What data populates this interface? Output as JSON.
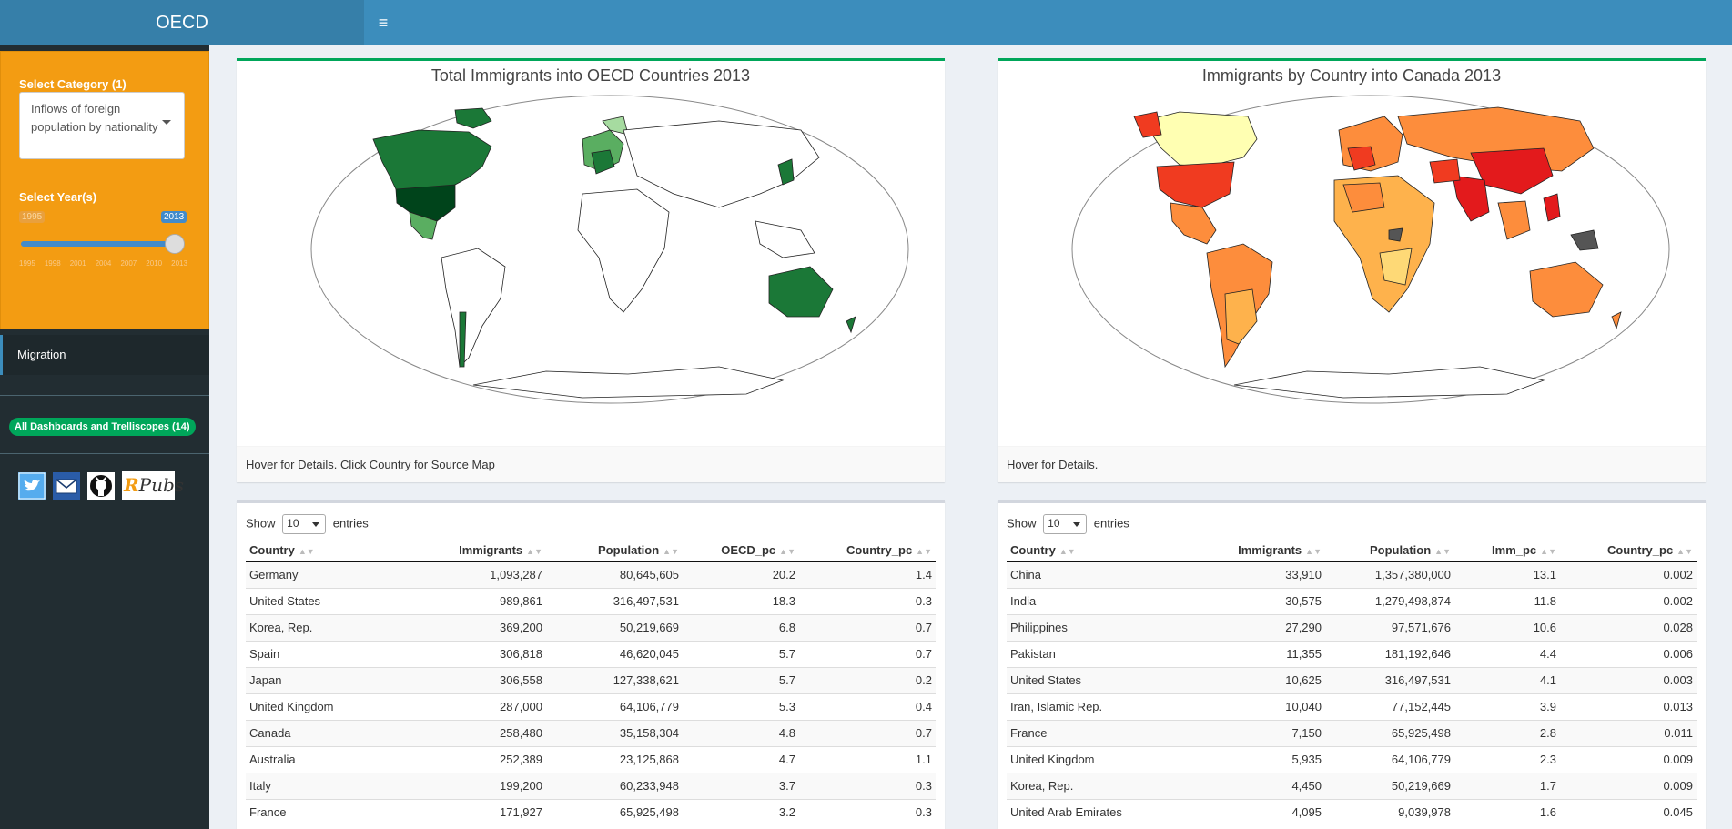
{
  "header": {
    "logo": "OECD",
    "menu_icon": "hamburger-icon"
  },
  "sidebar": {
    "category_label": "Select Category (1)",
    "category_value": "Inflows of foreign population by nationality",
    "year_label": "Select Year(s)",
    "slider_min_label": "1995",
    "slider_max_label": "2013",
    "slider_ticks": [
      "1995",
      "1998",
      "2001",
      "2004",
      "2007",
      "2010",
      "2013"
    ],
    "menu_item": "Migration",
    "badge_link": "All Dashboards and Trelliscopes (14)",
    "social": {
      "twitter_icon": "twitter-icon",
      "email_icon": "email-icon",
      "github_icon": "github-icon",
      "rpubs_r": "R",
      "rpubs_text": "Pubs"
    }
  },
  "map_left": {
    "title": "Total Immigrants into OECD Countries 2013",
    "footer": "Hover for Details. Click Country for Source Map",
    "accent": "#00a65a"
  },
  "map_right": {
    "title": "Immigrants by Country into Canada 2013",
    "footer": "Hover for Details.",
    "accent": "#00a65a"
  },
  "table_left": {
    "show_label": "Show",
    "entries_label": "entries",
    "length_value": "10",
    "columns": [
      "Country",
      "Immigrants",
      "Population",
      "OECD_pc",
      "Country_pc"
    ],
    "rows": [
      [
        "Germany",
        "1,093,287",
        "80,645,605",
        "20.2",
        "1.4"
      ],
      [
        "United States",
        "989,861",
        "316,497,531",
        "18.3",
        "0.3"
      ],
      [
        "Korea, Rep.",
        "369,200",
        "50,219,669",
        "6.8",
        "0.7"
      ],
      [
        "Spain",
        "306,818",
        "46,620,045",
        "5.7",
        "0.7"
      ],
      [
        "Japan",
        "306,558",
        "127,338,621",
        "5.7",
        "0.2"
      ],
      [
        "United Kingdom",
        "287,000",
        "64,106,779",
        "5.3",
        "0.4"
      ],
      [
        "Canada",
        "258,480",
        "35,158,304",
        "4.8",
        "0.7"
      ],
      [
        "Australia",
        "252,389",
        "23,125,868",
        "4.7",
        "1.1"
      ],
      [
        "Italy",
        "199,200",
        "60,233,948",
        "3.7",
        "0.3"
      ],
      [
        "France",
        "171,927",
        "65,925,498",
        "3.2",
        "0.3"
      ]
    ]
  },
  "table_right": {
    "show_label": "Show",
    "entries_label": "entries",
    "length_value": "10",
    "columns": [
      "Country",
      "Immigrants",
      "Population",
      "Imm_pc",
      "Country_pc"
    ],
    "rows": [
      [
        "China",
        "33,910",
        "1,357,380,000",
        "13.1",
        "0.002"
      ],
      [
        "India",
        "30,575",
        "1,279,498,874",
        "11.8",
        "0.002"
      ],
      [
        "Philippines",
        "27,290",
        "97,571,676",
        "10.6",
        "0.028"
      ],
      [
        "Pakistan",
        "11,355",
        "181,192,646",
        "4.4",
        "0.006"
      ],
      [
        "United States",
        "10,625",
        "316,497,531",
        "4.1",
        "0.003"
      ],
      [
        "Iran, Islamic Rep.",
        "10,040",
        "77,152,445",
        "3.9",
        "0.013"
      ],
      [
        "France",
        "7,150",
        "65,925,498",
        "2.8",
        "0.011"
      ],
      [
        "United Kingdom",
        "5,935",
        "64,106,779",
        "2.3",
        "0.009"
      ],
      [
        "Korea, Rep.",
        "4,450",
        "50,219,669",
        "1.7",
        "0.009"
      ],
      [
        "United Arab Emirates",
        "4,095",
        "9,039,978",
        "1.6",
        "0.045"
      ]
    ]
  }
}
